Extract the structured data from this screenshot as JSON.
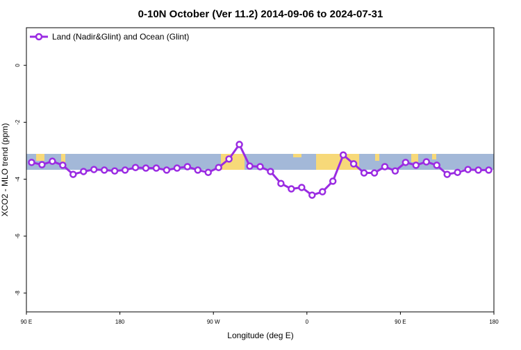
{
  "chart_data": {
    "type": "line",
    "title": "0-10N October (Ver 11.2)   2014-09-06 to 2024-07-31",
    "x_label": "Longitude (deg E)",
    "y_label": "XCO2 - MLO trend (ppm)",
    "x": [
      95,
      105,
      115,
      125,
      135,
      145,
      155,
      165,
      175,
      185,
      195,
      205,
      215,
      225,
      235,
      245,
      255,
      265,
      275,
      285,
      295,
      305,
      315,
      325,
      335,
      345,
      355,
      365,
      375,
      385,
      395,
      405,
      415,
      425,
      435,
      445,
      455,
      465,
      475,
      485,
      495,
      505,
      515,
      525,
      535
    ],
    "series": [
      {
        "name": "Land (Nadir&Glint) and Ocean (Glint)",
        "color": "#9a2be2",
        "values": [
          -3.41,
          -3.49,
          -3.37,
          -3.51,
          -3.83,
          -3.73,
          -3.66,
          -3.68,
          -3.71,
          -3.68,
          -3.59,
          -3.61,
          -3.61,
          -3.68,
          -3.61,
          -3.56,
          -3.68,
          -3.76,
          -3.59,
          -3.29,
          -2.78,
          -3.54,
          -3.56,
          -3.73,
          -4.15,
          -4.34,
          -4.29,
          -4.56,
          -4.44,
          -4.07,
          -3.15,
          -3.46,
          -3.78,
          -3.78,
          -3.56,
          -3.71,
          -3.41,
          -3.51,
          -3.39,
          -3.51,
          -3.83,
          -3.76,
          -3.66,
          -3.68,
          -3.68
        ]
      }
    ],
    "xlim": [
      90,
      540
    ],
    "xticks": [
      {
        "value": 90,
        "label": "90 E"
      },
      180,
      {
        "value": 270,
        "label": "90 W"
      },
      {
        "value": 360,
        "label": "0"
      },
      {
        "value": 450,
        "label": "90 E"
      },
      {
        "value": 540,
        "label": "180"
      }
    ],
    "ylim": [
      -8.66,
      1.32
    ],
    "yticks": [
      0,
      -2,
      -4,
      -6,
      -8
    ],
    "legend": "top-left"
  }
}
